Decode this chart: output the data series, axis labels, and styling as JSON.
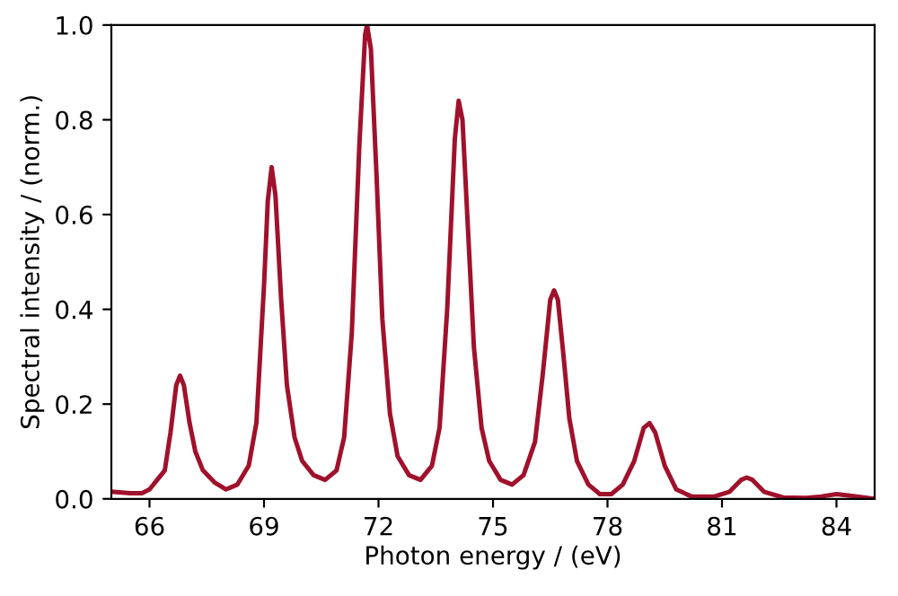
{
  "chart_data": {
    "type": "line",
    "xlabel": "Photon energy / (eV)",
    "ylabel": "Spectral intensity / (norm.)",
    "x": [
      65.0,
      65.5,
      65.8,
      66.0,
      66.2,
      66.4,
      66.55,
      66.7,
      66.8,
      66.9,
      67.05,
      67.2,
      67.4,
      67.7,
      68.0,
      68.3,
      68.6,
      68.8,
      69.0,
      69.1,
      69.2,
      69.3,
      69.45,
      69.6,
      69.8,
      70.0,
      70.3,
      70.6,
      70.9,
      71.1,
      71.3,
      71.5,
      71.65,
      71.7,
      71.8,
      71.95,
      72.1,
      72.3,
      72.5,
      72.8,
      73.1,
      73.4,
      73.6,
      73.8,
      74.0,
      74.1,
      74.2,
      74.35,
      74.5,
      74.7,
      74.9,
      75.2,
      75.5,
      75.8,
      76.1,
      76.3,
      76.5,
      76.6,
      76.7,
      76.85,
      77.0,
      77.2,
      77.5,
      77.8,
      78.1,
      78.4,
      78.7,
      78.95,
      79.1,
      79.25,
      79.5,
      79.8,
      80.2,
      80.8,
      81.2,
      81.5,
      81.65,
      81.8,
      82.1,
      82.6,
      83.2,
      83.6,
      84.0,
      84.4,
      85.0
    ],
    "series": [
      {
        "color": "#a0112b",
        "values": [
          0.015,
          0.012,
          0.012,
          0.02,
          0.04,
          0.06,
          0.14,
          0.24,
          0.26,
          0.24,
          0.16,
          0.1,
          0.06,
          0.035,
          0.02,
          0.03,
          0.07,
          0.16,
          0.45,
          0.63,
          0.7,
          0.64,
          0.42,
          0.24,
          0.13,
          0.08,
          0.05,
          0.04,
          0.06,
          0.13,
          0.35,
          0.75,
          0.98,
          1.0,
          0.95,
          0.68,
          0.38,
          0.18,
          0.09,
          0.05,
          0.04,
          0.07,
          0.15,
          0.4,
          0.76,
          0.84,
          0.8,
          0.56,
          0.32,
          0.15,
          0.08,
          0.04,
          0.03,
          0.05,
          0.12,
          0.26,
          0.42,
          0.44,
          0.42,
          0.3,
          0.17,
          0.08,
          0.03,
          0.01,
          0.01,
          0.03,
          0.08,
          0.15,
          0.16,
          0.14,
          0.07,
          0.02,
          0.005,
          0.005,
          0.015,
          0.04,
          0.045,
          0.04,
          0.015,
          0.003,
          0.002,
          0.005,
          0.01,
          0.006,
          0.0
        ]
      }
    ],
    "xlim": [
      65,
      85
    ],
    "ylim": [
      0,
      1
    ],
    "xticks": [
      66,
      69,
      72,
      75,
      78,
      81,
      84
    ],
    "yticks": [
      {
        "value": 0,
        "label": "0.0"
      },
      {
        "value": 0.2,
        "label": "0.2"
      },
      {
        "value": 0.4,
        "label": "0.4"
      },
      {
        "value": 0.6,
        "label": "0.6"
      },
      {
        "value": 0.8,
        "label": "0.8"
      },
      {
        "value": 1,
        "label": "1.0"
      }
    ],
    "grid": false,
    "line_style": "solid"
  }
}
